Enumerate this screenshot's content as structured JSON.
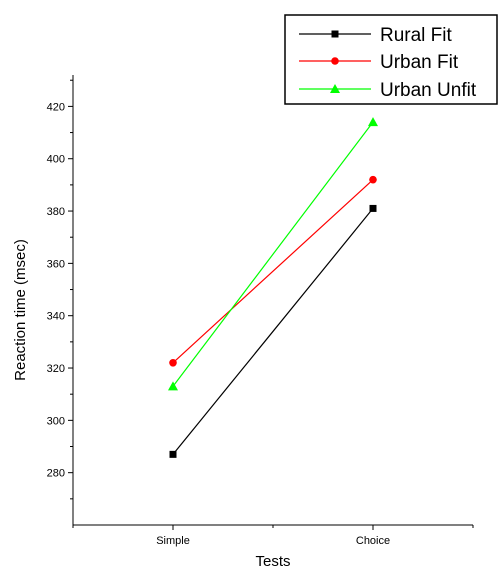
{
  "chart_data": {
    "type": "line",
    "title": "",
    "xlabel": "Tests",
    "ylabel": "Reaction time (msec)",
    "categories": [
      "Simple",
      "Choice"
    ],
    "ylim": [
      260,
      432
    ],
    "yticks": [
      280,
      300,
      320,
      340,
      360,
      380,
      400,
      420
    ],
    "grid": false,
    "legend_position": "top-right",
    "series": [
      {
        "name": "Rural Fit",
        "values": [
          287,
          381
        ],
        "color": "#000000",
        "marker": "square"
      },
      {
        "name": "Urban Fit",
        "values": [
          322,
          392
        ],
        "color": "#ff0000",
        "marker": "circle"
      },
      {
        "name": "Urban Unfit",
        "values": [
          313,
          414
        ],
        "color": "#00ff00",
        "marker": "triangle"
      }
    ]
  }
}
